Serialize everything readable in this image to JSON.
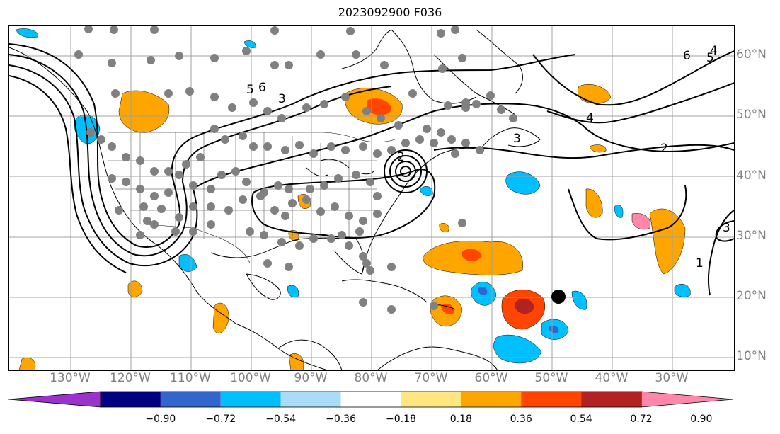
{
  "title": "2023092900 F036",
  "lon_labels": [
    "130°W",
    "120°W",
    "110°W",
    "100°W",
    "90°W",
    "80°W",
    "70°W",
    "60°W",
    "50°W",
    "40°W",
    "30°W"
  ],
  "lat_labels": [
    "60°N",
    "50°N",
    "40°N",
    "30°N",
    "20°N",
    "10°N"
  ],
  "colorbar": {
    "ticks": [
      "−0.90",
      "−0.72",
      "−0.54",
      "−0.36",
      "−0.18",
      "0.18",
      "0.36",
      "0.54",
      "0.72",
      "0.90"
    ],
    "colors": [
      "#9933cc",
      "#000080",
      "#3366cc",
      "#00bfff",
      "#aadcf5",
      "#ffffff",
      "#ffe680",
      "#ffa500",
      "#ff4500",
      "#b22222",
      "#ff88aa"
    ]
  },
  "contour_labels": [
    "6",
    "5",
    "3",
    "2",
    "4",
    "6",
    "5",
    "4",
    "3",
    "2",
    "1",
    "3"
  ],
  "colors": {
    "station": "#808080",
    "contour": "#000000",
    "grid": "#a0a0a0",
    "marker": "#000000"
  }
}
